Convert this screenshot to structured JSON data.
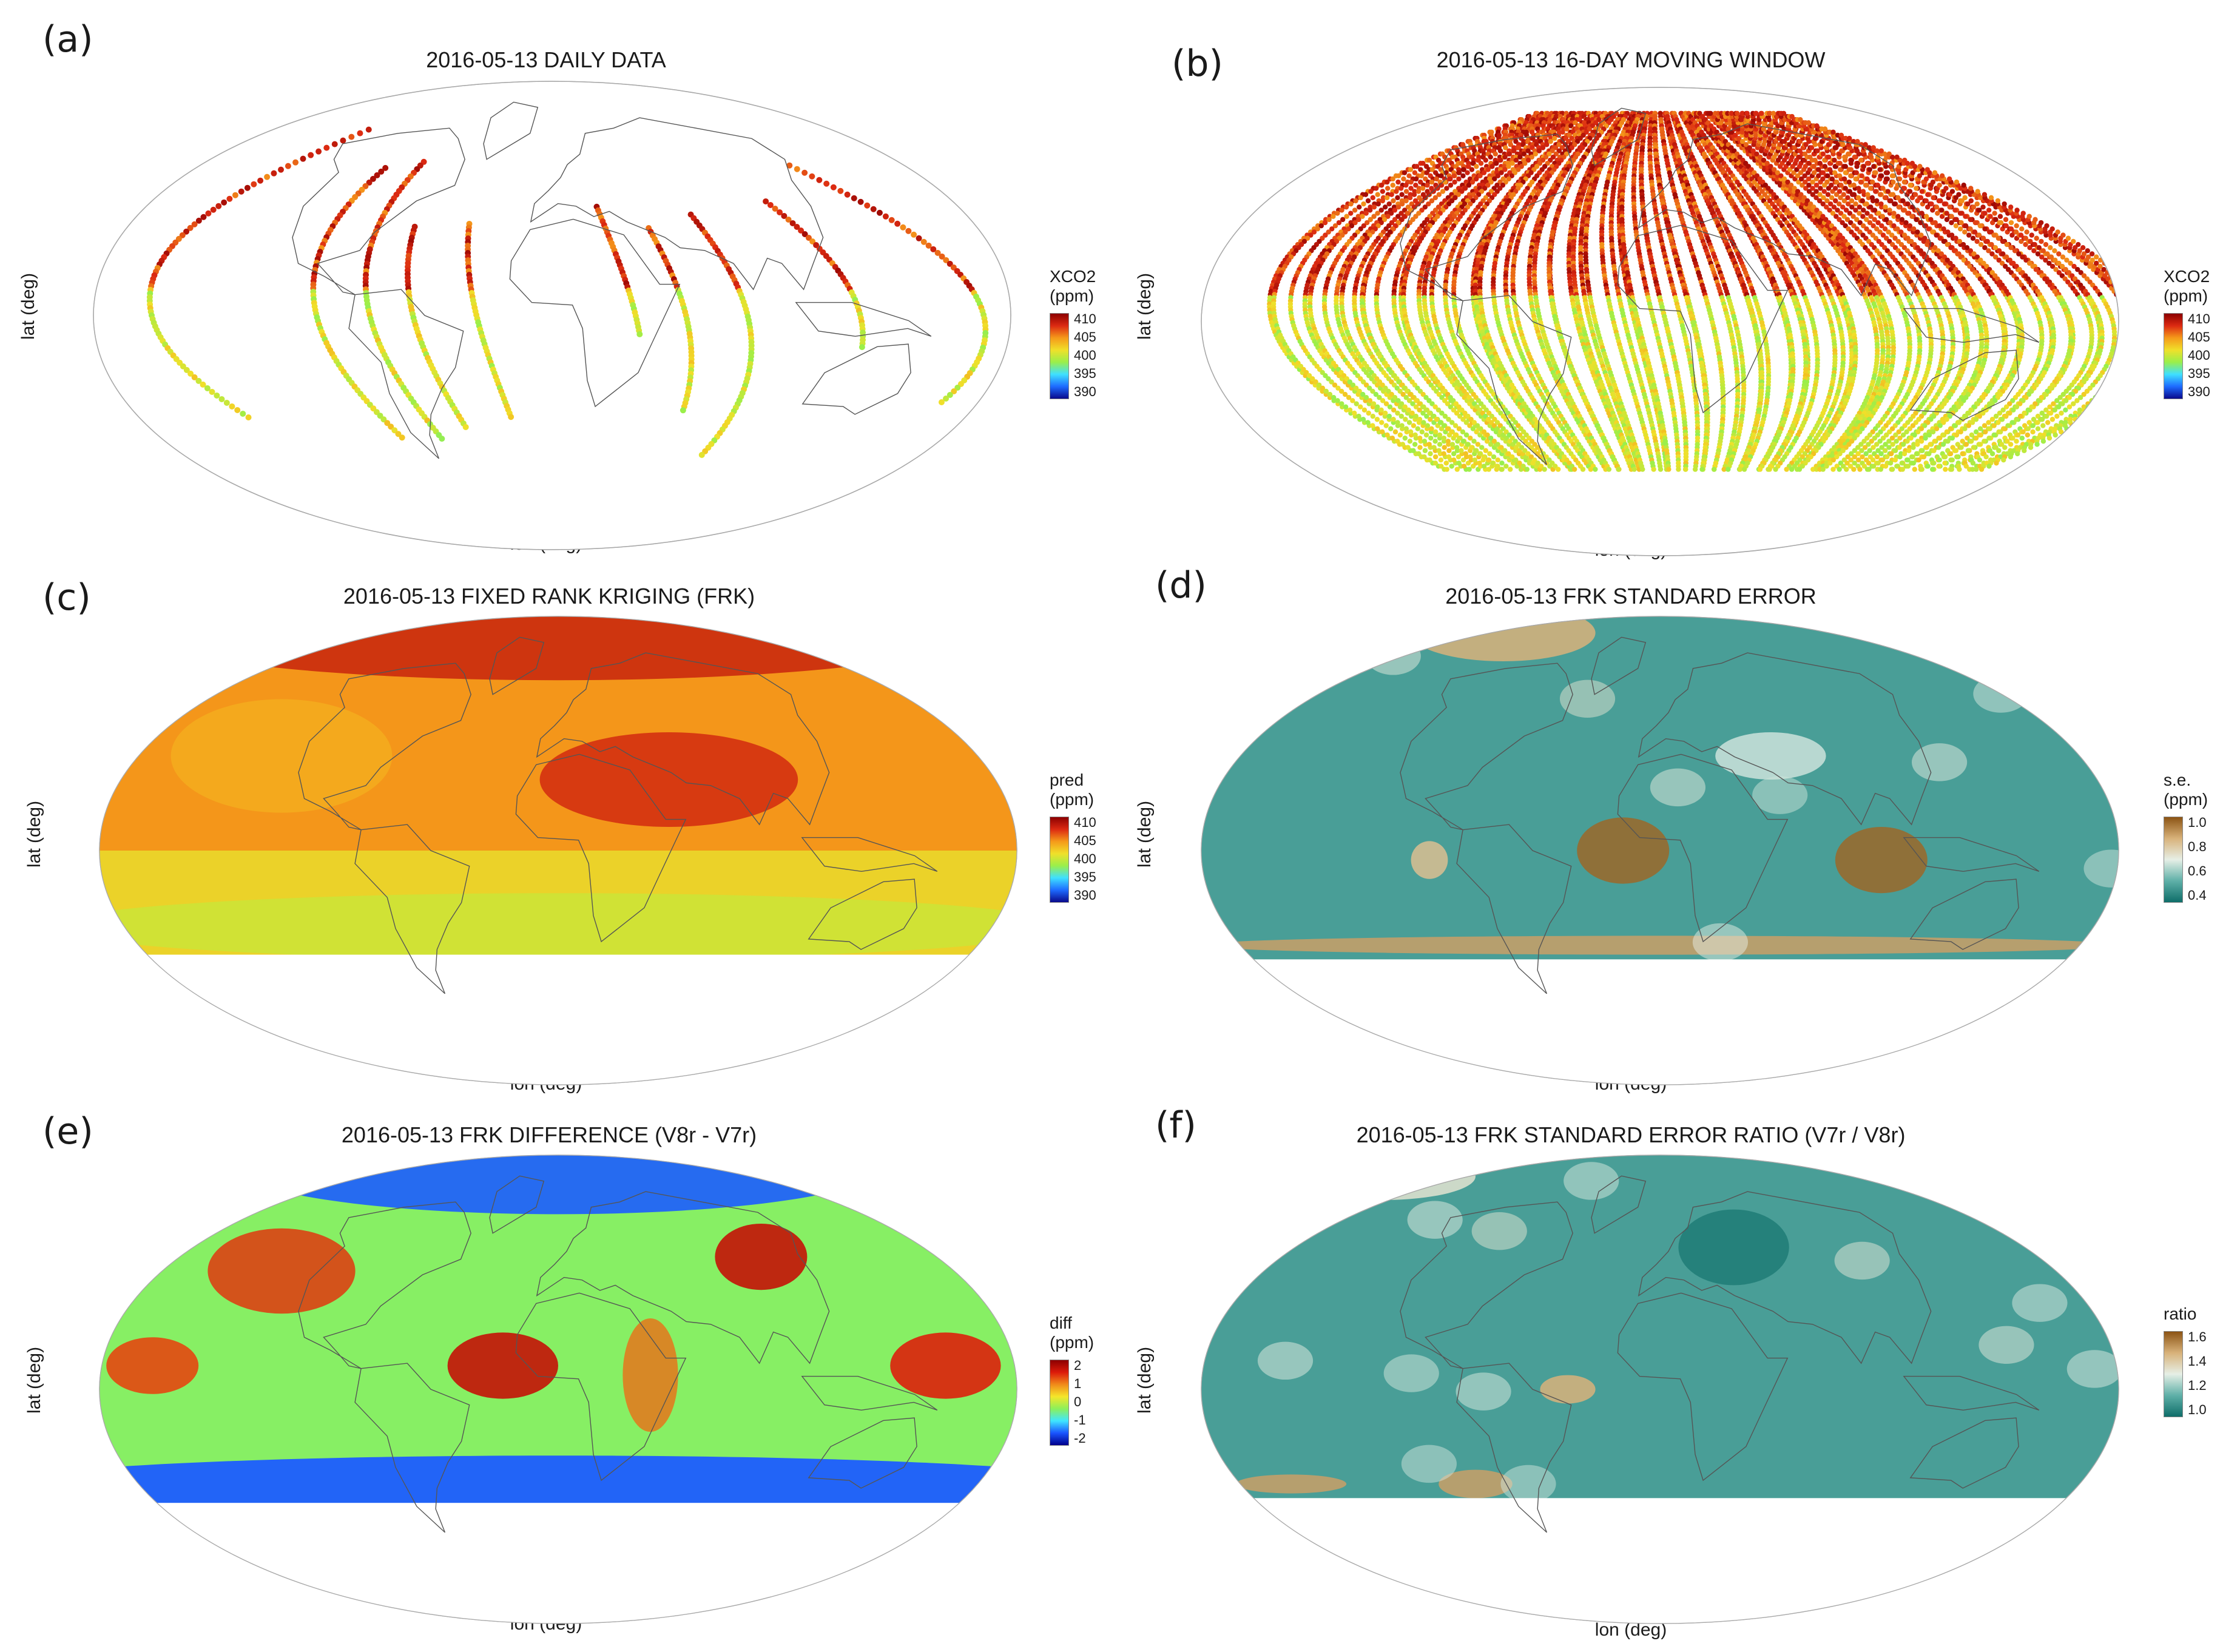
{
  "colors": {
    "xco2_scale": [
      "#0a0a8c",
      "#1e6bff",
      "#3fe0ff",
      "#9aef4a",
      "#f0e02a",
      "#f59a1a",
      "#dc2a12",
      "#8c0000"
    ],
    "se_scale": [
      "#0f6e6a",
      "#5fb0a8",
      "#e6efe6",
      "#d8b27a",
      "#8c5414"
    ],
    "diff_scale": [
      "#00008c",
      "#1a55ff",
      "#3fe6ff",
      "#8cf05a",
      "#f5e62a",
      "#f08a1a",
      "#dc1a0a",
      "#8c0000"
    ],
    "ocean": "#ffffff",
    "coast": "#555555"
  },
  "panels": [
    {
      "label": "(a)",
      "title": "2016-05-13 DAILY DATA",
      "xlabel": "lon (deg)",
      "ylabel": "lat (deg)",
      "legend": {
        "title": "XCO2\n(ppm)",
        "ticks": [
          "410",
          "405",
          "400",
          "395",
          "390"
        ],
        "scale": "xco2"
      }
    },
    {
      "label": "(b)",
      "title": "2016-05-13 16-DAY MOVING WINDOW",
      "xlabel": "lon (deg)",
      "ylabel": "lat (deg)",
      "legend": {
        "title": "XCO2\n(ppm)",
        "ticks": [
          "410",
          "405",
          "400",
          "395",
          "390"
        ],
        "scale": "xco2"
      }
    },
    {
      "label": "(c)",
      "title": "2016-05-13  FIXED RANK KRIGING (FRK)",
      "xlabel": "lon (deg)",
      "ylabel": "lat (deg)",
      "legend": {
        "title": "pred\n(ppm)",
        "ticks": [
          "410",
          "405",
          "400",
          "395",
          "390"
        ],
        "scale": "xco2"
      }
    },
    {
      "label": "(d)",
      "title": "2016-05-13 FRK STANDARD ERROR",
      "xlabel": "lon (deg)",
      "ylabel": "lat (deg)",
      "legend": {
        "title": "s.e.\n(ppm)",
        "ticks": [
          "1.0",
          "0.8",
          "0.6",
          "0.4"
        ],
        "scale": "se"
      }
    },
    {
      "label": "(e)",
      "title": "2016-05-13 FRK DIFFERENCE (V8r - V7r)",
      "xlabel": "lon (deg)",
      "ylabel": "lat (deg)",
      "legend": {
        "title": "diff\n(ppm)",
        "ticks": [
          "2",
          "1",
          "0",
          "-1",
          "-2"
        ],
        "scale": "diff"
      }
    },
    {
      "label": "(f)",
      "title": "2016-05-13 FRK STANDARD ERROR RATIO (V7r / V8r)",
      "xlabel": "lon (deg)",
      "ylabel": "lat (deg)",
      "legend": {
        "title": "ratio",
        "ticks": [
          "1.6",
          "1.4",
          "1.2",
          "1.0"
        ],
        "scale": "se"
      }
    }
  ]
}
